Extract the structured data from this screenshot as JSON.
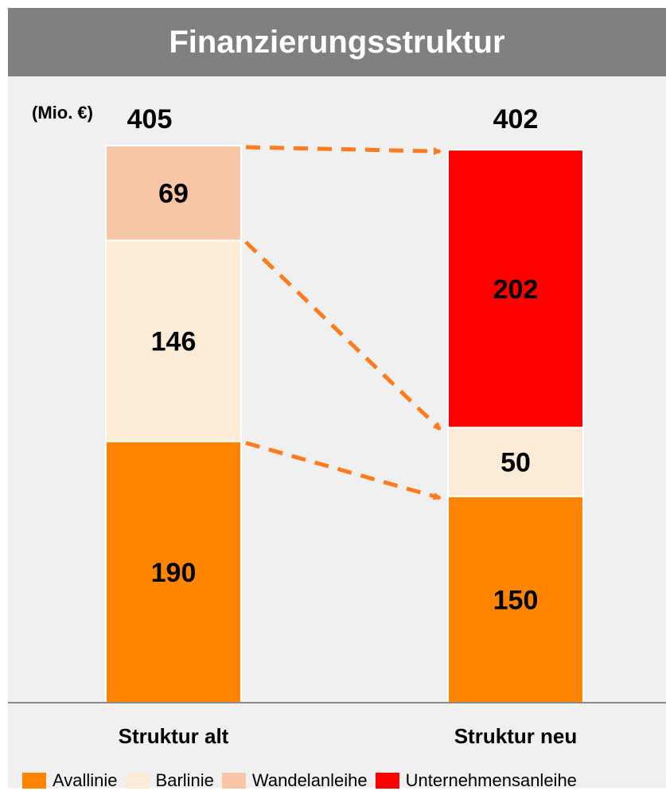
{
  "title": "Finanzierungsstruktur",
  "unit_label": "(Mio. €)",
  "colors": {
    "Avallinie": "#ff8500",
    "Barlinie": "#fbebd7",
    "Wandelanleihe": "#f8c6a7",
    "Unternehmensanleihe": "#ff0000",
    "arrow": "#ff7a1a"
  },
  "chart_data": {
    "type": "bar",
    "stacked": true,
    "categories": [
      "Struktur alt",
      "Struktur neu"
    ],
    "totals": [
      "405",
      "402"
    ],
    "series": [
      {
        "name": "Avallinie",
        "values": [
          190,
          150
        ]
      },
      {
        "name": "Barlinie",
        "values": [
          146,
          50
        ]
      },
      {
        "name": "Wandelanleihe",
        "values": [
          69,
          null
        ]
      },
      {
        "name": "Unternehmensanleihe",
        "values": [
          null,
          202
        ]
      }
    ],
    "legend_position": "bottom"
  }
}
